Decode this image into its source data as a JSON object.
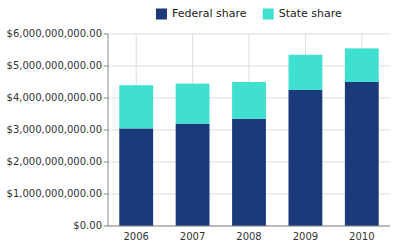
{
  "chart_data": {
    "type": "bar",
    "stacked": true,
    "categories": [
      "2006",
      "2007",
      "2008",
      "2009",
      "2010"
    ],
    "series": [
      {
        "name": "Federal share",
        "color": "#1a3a7a",
        "values": [
          3050000000,
          3200000000,
          3350000000,
          4250000000,
          4500000000
        ]
      },
      {
        "name": "State share",
        "color": "#40e0d0",
        "values": [
          1350000000,
          1250000000,
          1150000000,
          1100000000,
          1050000000
        ]
      }
    ],
    "ylim": [
      0,
      6000000000
    ],
    "yticks": [
      {
        "value": 0,
        "label": "$0.00"
      },
      {
        "value": 1000000000,
        "label": "$1,000,000,000.00"
      },
      {
        "value": 2000000000,
        "label": "$2,000,000,000.00"
      },
      {
        "value": 3000000000,
        "label": "$3,000,000,000.00"
      },
      {
        "value": 4000000000,
        "label": "$4,000,000,000.00"
      },
      {
        "value": 5000000000,
        "label": "$5,000,000,000.00"
      },
      {
        "value": 6000000000,
        "label": "$6,000,000,000.00"
      }
    ],
    "grid": true,
    "legend": "top"
  }
}
